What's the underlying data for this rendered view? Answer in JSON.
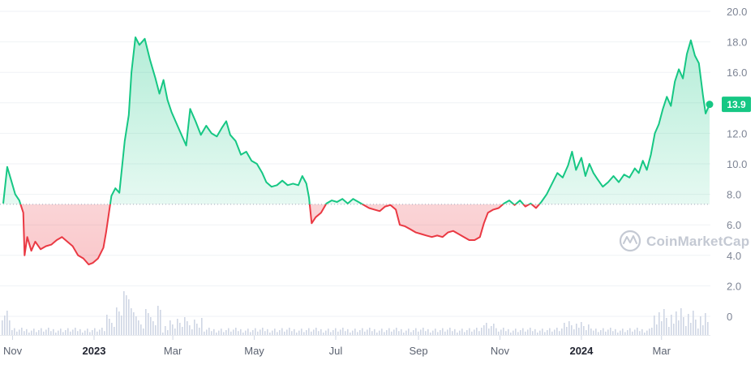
{
  "watermark": {
    "text": "CoinMarketCap"
  },
  "current_price_label": "13.9",
  "colors": {
    "up": "#16c784",
    "down": "#ea3943",
    "grid": "#eff2f5",
    "baseline": "#a1a7bb",
    "volume": "#cfd6e4",
    "watermark": "#c4c9d3"
  },
  "chart_data": {
    "type": "line",
    "title": "",
    "xlabel": "",
    "ylabel": "",
    "ylim": [
      0,
      20
    ],
    "y_ticks": [
      "20.0",
      "18.0",
      "16.0",
      "14.0",
      "12.0",
      "10.0",
      "8.0",
      "6.0",
      "4.0",
      "2.0",
      "0"
    ],
    "x_ticks": [
      {
        "label": "Nov",
        "date": "2022-11-01",
        "bold": false
      },
      {
        "label": "2023",
        "date": "2023-01-01",
        "bold": true
      },
      {
        "label": "Mar",
        "date": "2023-03-01",
        "bold": false
      },
      {
        "label": "May",
        "date": "2023-05-01",
        "bold": false
      },
      {
        "label": "Jul",
        "date": "2023-07-01",
        "bold": false
      },
      {
        "label": "Sep",
        "date": "2023-09-01",
        "bold": false
      },
      {
        "label": "Nov",
        "date": "2023-11-01",
        "bold": false
      },
      {
        "label": "2024",
        "date": "2024-01-01",
        "bold": true
      },
      {
        "label": "Mar",
        "date": "2024-03-01",
        "bold": false
      }
    ],
    "baseline": 7.35,
    "grid": true,
    "legend": "none",
    "series": [
      {
        "points": [
          [
            "2022-10-25",
            7.4
          ],
          [
            "2022-10-28",
            9.8
          ],
          [
            "2022-10-31",
            8.9
          ],
          [
            "2022-11-03",
            8.0
          ],
          [
            "2022-11-06",
            7.6
          ],
          [
            "2022-11-09",
            6.8
          ],
          [
            "2022-11-10",
            4.0
          ],
          [
            "2022-11-12",
            5.2
          ],
          [
            "2022-11-15",
            4.3
          ],
          [
            "2022-11-18",
            4.9
          ],
          [
            "2022-11-22",
            4.4
          ],
          [
            "2022-11-26",
            4.6
          ],
          [
            "2022-11-30",
            4.7
          ],
          [
            "2022-12-04",
            5.0
          ],
          [
            "2022-12-08",
            5.2
          ],
          [
            "2022-12-12",
            4.9
          ],
          [
            "2022-12-16",
            4.6
          ],
          [
            "2022-12-20",
            4.0
          ],
          [
            "2022-12-24",
            3.8
          ],
          [
            "2022-12-28",
            3.4
          ],
          [
            "2022-12-31",
            3.5
          ],
          [
            "2023-01-04",
            3.8
          ],
          [
            "2023-01-08",
            4.5
          ],
          [
            "2023-01-10",
            5.5
          ],
          [
            "2023-01-12",
            6.7
          ],
          [
            "2023-01-14",
            7.9
          ],
          [
            "2023-01-17",
            8.4
          ],
          [
            "2023-01-20",
            8.1
          ],
          [
            "2023-01-24",
            11.5
          ],
          [
            "2023-01-27",
            13.2
          ],
          [
            "2023-01-29",
            16.0
          ],
          [
            "2023-02-01",
            18.3
          ],
          [
            "2023-02-04",
            17.8
          ],
          [
            "2023-02-08",
            18.2
          ],
          [
            "2023-02-12",
            16.8
          ],
          [
            "2023-02-16",
            15.6
          ],
          [
            "2023-02-19",
            14.6
          ],
          [
            "2023-02-22",
            15.5
          ],
          [
            "2023-02-25",
            14.2
          ],
          [
            "2023-02-28",
            13.4
          ],
          [
            "2023-03-03",
            12.8
          ],
          [
            "2023-03-07",
            12.0
          ],
          [
            "2023-03-11",
            11.2
          ],
          [
            "2023-03-14",
            13.6
          ],
          [
            "2023-03-18",
            12.8
          ],
          [
            "2023-03-22",
            11.9
          ],
          [
            "2023-03-26",
            12.5
          ],
          [
            "2023-03-30",
            12.0
          ],
          [
            "2023-04-03",
            11.8
          ],
          [
            "2023-04-07",
            12.4
          ],
          [
            "2023-04-10",
            12.8
          ],
          [
            "2023-04-13",
            11.9
          ],
          [
            "2023-04-17",
            11.5
          ],
          [
            "2023-04-21",
            10.6
          ],
          [
            "2023-04-25",
            10.8
          ],
          [
            "2023-04-29",
            10.2
          ],
          [
            "2023-05-03",
            10.0
          ],
          [
            "2023-05-07",
            9.4
          ],
          [
            "2023-05-10",
            8.8
          ],
          [
            "2023-05-14",
            8.5
          ],
          [
            "2023-05-18",
            8.6
          ],
          [
            "2023-05-22",
            8.9
          ],
          [
            "2023-05-26",
            8.6
          ],
          [
            "2023-05-30",
            8.7
          ],
          [
            "2023-06-03",
            8.6
          ],
          [
            "2023-06-06",
            9.2
          ],
          [
            "2023-06-09",
            8.7
          ],
          [
            "2023-06-11",
            7.8
          ],
          [
            "2023-06-13",
            6.1
          ],
          [
            "2023-06-16",
            6.5
          ],
          [
            "2023-06-20",
            6.8
          ],
          [
            "2023-06-24",
            7.4
          ],
          [
            "2023-06-28",
            7.6
          ],
          [
            "2023-07-02",
            7.5
          ],
          [
            "2023-07-06",
            7.7
          ],
          [
            "2023-07-10",
            7.4
          ],
          [
            "2023-07-14",
            7.7
          ],
          [
            "2023-07-18",
            7.5
          ],
          [
            "2023-07-22",
            7.3
          ],
          [
            "2023-07-26",
            7.1
          ],
          [
            "2023-07-30",
            7.0
          ],
          [
            "2023-08-03",
            6.9
          ],
          [
            "2023-08-07",
            7.2
          ],
          [
            "2023-08-11",
            7.3
          ],
          [
            "2023-08-15",
            7.0
          ],
          [
            "2023-08-18",
            6.0
          ],
          [
            "2023-08-22",
            5.9
          ],
          [
            "2023-08-26",
            5.7
          ],
          [
            "2023-08-30",
            5.5
          ],
          [
            "2023-09-03",
            5.4
          ],
          [
            "2023-09-07",
            5.3
          ],
          [
            "2023-09-11",
            5.2
          ],
          [
            "2023-09-15",
            5.3
          ],
          [
            "2023-09-19",
            5.2
          ],
          [
            "2023-09-23",
            5.5
          ],
          [
            "2023-09-27",
            5.6
          ],
          [
            "2023-10-01",
            5.4
          ],
          [
            "2023-10-05",
            5.2
          ],
          [
            "2023-10-09",
            5.0
          ],
          [
            "2023-10-13",
            5.0
          ],
          [
            "2023-10-17",
            5.2
          ],
          [
            "2023-10-20",
            6.1
          ],
          [
            "2023-10-23",
            6.8
          ],
          [
            "2023-10-27",
            7.0
          ],
          [
            "2023-10-31",
            7.1
          ],
          [
            "2023-11-04",
            7.4
          ],
          [
            "2023-11-08",
            7.6
          ],
          [
            "2023-11-12",
            7.3
          ],
          [
            "2023-11-16",
            7.6
          ],
          [
            "2023-11-20",
            7.2
          ],
          [
            "2023-11-24",
            7.4
          ],
          [
            "2023-11-28",
            7.1
          ],
          [
            "2023-12-02",
            7.5
          ],
          [
            "2023-12-06",
            8.0
          ],
          [
            "2023-12-10",
            8.7
          ],
          [
            "2023-12-14",
            9.4
          ],
          [
            "2023-12-18",
            9.1
          ],
          [
            "2023-12-22",
            9.9
          ],
          [
            "2023-12-25",
            10.8
          ],
          [
            "2023-12-28",
            9.6
          ],
          [
            "2024-01-01",
            10.4
          ],
          [
            "2024-01-04",
            9.2
          ],
          [
            "2024-01-07",
            10.0
          ],
          [
            "2024-01-10",
            9.4
          ],
          [
            "2024-01-13",
            9.0
          ],
          [
            "2024-01-17",
            8.5
          ],
          [
            "2024-01-21",
            8.8
          ],
          [
            "2024-01-25",
            9.2
          ],
          [
            "2024-01-29",
            8.8
          ],
          [
            "2024-02-02",
            9.3
          ],
          [
            "2024-02-06",
            9.1
          ],
          [
            "2024-02-10",
            9.7
          ],
          [
            "2024-02-13",
            9.4
          ],
          [
            "2024-02-16",
            10.2
          ],
          [
            "2024-02-19",
            9.6
          ],
          [
            "2024-02-22",
            10.6
          ],
          [
            "2024-02-25",
            12.0
          ],
          [
            "2024-02-28",
            12.6
          ],
          [
            "2024-03-02",
            13.6
          ],
          [
            "2024-03-05",
            14.4
          ],
          [
            "2024-03-08",
            13.8
          ],
          [
            "2024-03-11",
            15.4
          ],
          [
            "2024-03-14",
            16.2
          ],
          [
            "2024-03-17",
            15.6
          ],
          [
            "2024-03-20",
            17.2
          ],
          [
            "2024-03-23",
            18.1
          ],
          [
            "2024-03-26",
            17.1
          ],
          [
            "2024-03-29",
            16.6
          ],
          [
            "2024-04-01",
            14.5
          ],
          [
            "2024-04-03",
            13.3
          ],
          [
            "2024-04-06",
            13.9
          ]
        ]
      }
    ]
  }
}
